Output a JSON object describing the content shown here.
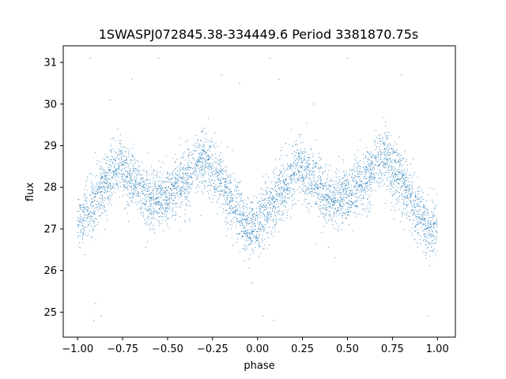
{
  "chart_data": {
    "type": "scatter",
    "title": "1SWASPJ072845.38-334449.6 Period 3381870.75s",
    "xlabel": "phase",
    "ylabel": "flux",
    "xlim": [
      -1.08,
      1.1
    ],
    "ylim": [
      24.4,
      31.4
    ],
    "x_ticks": [
      -1.0,
      -0.75,
      -0.5,
      -0.25,
      0.0,
      0.25,
      0.5,
      0.75,
      1.0
    ],
    "x_tick_labels": [
      "−1.00",
      "−0.75",
      "−0.50",
      "−0.25",
      "0.00",
      "0.25",
      "0.50",
      "0.75",
      "1.00"
    ],
    "y_ticks": [
      25,
      26,
      27,
      28,
      29,
      30,
      31
    ],
    "y_tick_labels": [
      "25",
      "26",
      "27",
      "28",
      "29",
      "30",
      "31"
    ],
    "grid": false,
    "legend": "none",
    "marker_color": "#1f77b4",
    "series": [
      {
        "phase_range": [
          -1.0,
          1.0
        ],
        "period_in_phase": 1.0,
        "profile": [
          {
            "phase": -1.0,
            "flux": 27.1
          },
          {
            "phase": -0.93,
            "flux": 27.5
          },
          {
            "phase": -0.85,
            "flux": 28.0
          },
          {
            "phase": -0.78,
            "flux": 28.5
          },
          {
            "phase": -0.7,
            "flux": 28.2
          },
          {
            "phase": -0.6,
            "flux": 27.7
          },
          {
            "phase": -0.5,
            "flux": 27.8
          },
          {
            "phase": -0.42,
            "flux": 28.1
          },
          {
            "phase": -0.3,
            "flux": 28.7
          },
          {
            "phase": -0.22,
            "flux": 28.3
          },
          {
            "phase": -0.12,
            "flux": 27.5
          },
          {
            "phase": -0.05,
            "flux": 27.0
          },
          {
            "phase": 0.0,
            "flux": 27.1
          }
        ],
        "scatter_sigma": 0.35,
        "point_count": 5000,
        "outliers": [
          {
            "phase": -0.93,
            "flux": 31.1
          },
          {
            "phase": -0.9,
            "flux": 25.2
          },
          {
            "phase": -0.91,
            "flux": 24.8
          },
          {
            "phase": -0.87,
            "flux": 24.9
          },
          {
            "phase": -0.82,
            "flux": 30.1
          },
          {
            "phase": -0.7,
            "flux": 30.6
          },
          {
            "phase": -0.55,
            "flux": 31.1
          },
          {
            "phase": -0.2,
            "flux": 30.7
          },
          {
            "phase": -0.1,
            "flux": 30.5
          },
          {
            "phase": -0.03,
            "flux": 25.7
          },
          {
            "phase": 0.03,
            "flux": 24.9
          },
          {
            "phase": 0.07,
            "flux": 31.1
          },
          {
            "phase": 0.09,
            "flux": 24.8
          },
          {
            "phase": 0.12,
            "flux": 30.6
          },
          {
            "phase": 0.31,
            "flux": 30.0
          },
          {
            "phase": 0.5,
            "flux": 31.1
          },
          {
            "phase": 0.8,
            "flux": 30.7
          },
          {
            "phase": 0.95,
            "flux": 24.9
          }
        ]
      }
    ]
  }
}
